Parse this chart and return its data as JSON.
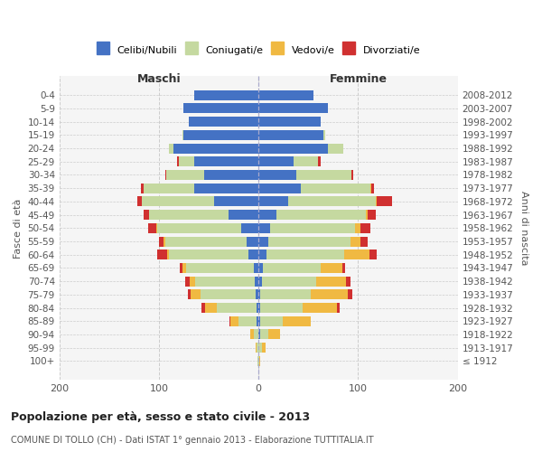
{
  "age_groups": [
    "100+",
    "95-99",
    "90-94",
    "85-89",
    "80-84",
    "75-79",
    "70-74",
    "65-69",
    "60-64",
    "55-59",
    "50-54",
    "45-49",
    "40-44",
    "35-39",
    "30-34",
    "25-29",
    "20-24",
    "15-19",
    "10-14",
    "5-9",
    "0-4"
  ],
  "birth_years": [
    "≤ 1912",
    "1913-1917",
    "1918-1922",
    "1923-1927",
    "1928-1932",
    "1933-1937",
    "1938-1942",
    "1943-1947",
    "1948-1952",
    "1953-1957",
    "1958-1962",
    "1963-1967",
    "1968-1972",
    "1973-1977",
    "1978-1982",
    "1983-1987",
    "1988-1992",
    "1993-1997",
    "1998-2002",
    "2003-2007",
    "2008-2012"
  ],
  "males": {
    "celibi": [
      0,
      0,
      0,
      2,
      2,
      3,
      4,
      5,
      10,
      12,
      17,
      30,
      45,
      65,
      55,
      65,
      85,
      75,
      70,
      75,
      65
    ],
    "coniugati": [
      1,
      2,
      5,
      18,
      40,
      55,
      60,
      68,
      80,
      82,
      85,
      80,
      72,
      50,
      38,
      15,
      5,
      1,
      0,
      0,
      0
    ],
    "vedovi": [
      0,
      1,
      3,
      8,
      12,
      10,
      5,
      3,
      2,
      1,
      1,
      0,
      0,
      0,
      0,
      0,
      0,
      0,
      0,
      0,
      0
    ],
    "divorziati": [
      0,
      0,
      0,
      1,
      3,
      3,
      5,
      3,
      10,
      5,
      8,
      5,
      5,
      3,
      1,
      2,
      0,
      0,
      0,
      0,
      0
    ]
  },
  "females": {
    "nubili": [
      0,
      0,
      2,
      2,
      2,
      2,
      3,
      4,
      8,
      10,
      12,
      18,
      30,
      42,
      38,
      35,
      70,
      65,
      62,
      70,
      55
    ],
    "coniugate": [
      1,
      3,
      8,
      22,
      42,
      50,
      55,
      58,
      78,
      82,
      85,
      90,
      88,
      70,
      55,
      25,
      15,
      2,
      0,
      0,
      0
    ],
    "vedove": [
      1,
      4,
      12,
      28,
      35,
      38,
      30,
      22,
      25,
      10,
      5,
      2,
      1,
      1,
      0,
      0,
      0,
      0,
      0,
      0,
      0
    ],
    "divorziate": [
      0,
      0,
      0,
      0,
      2,
      4,
      4,
      3,
      8,
      8,
      10,
      8,
      15,
      3,
      2,
      2,
      0,
      0,
      0,
      0,
      0
    ]
  },
  "colors": {
    "celibi_nubili": "#4472c4",
    "coniugati": "#c5d9a0",
    "vedovi": "#f0b942",
    "divorziati": "#d03030"
  },
  "title": "Popolazione per età, sesso e stato civile - 2013",
  "subtitle": "COMUNE DI TOLLO (CH) - Dati ISTAT 1° gennaio 2013 - Elaborazione TUTTITALIA.IT",
  "xlabel_left": "Maschi",
  "xlabel_right": "Femmine",
  "ylabel_left": "Fasce di età",
  "ylabel_right": "Anni di nascita",
  "legend_labels": [
    "Celibi/Nubili",
    "Coniugati/e",
    "Vedovi/e",
    "Divorziati/e"
  ],
  "xlim": 200,
  "background_color": "#f5f5f5"
}
